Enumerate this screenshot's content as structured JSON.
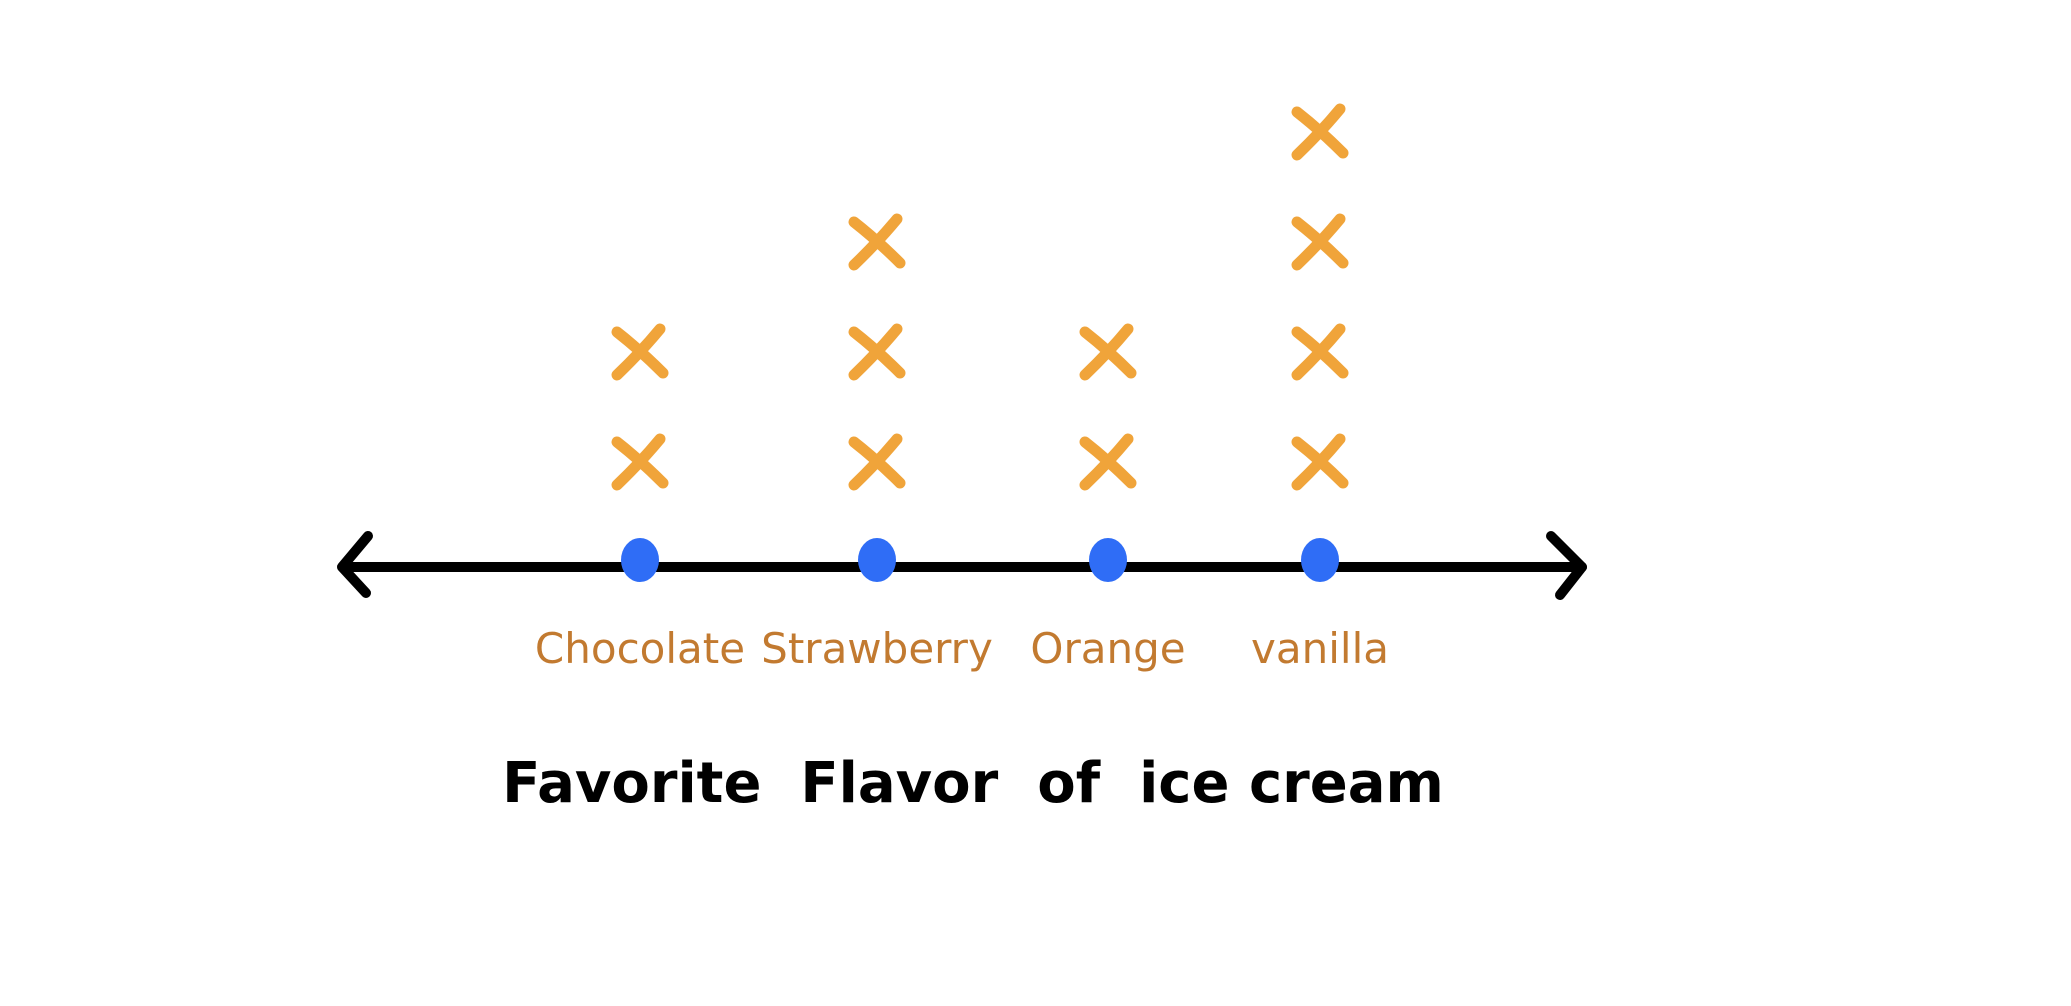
{
  "chart_data": {
    "type": "dot_plot",
    "title": "Favorite  Flavor  of  ice cream",
    "categories": [
      "Chocolate",
      "Strawberry",
      "Orange",
      "vanilla"
    ],
    "values": [
      2,
      3,
      2,
      4
    ],
    "axis_arrows": "both-ends",
    "grid": false,
    "legend": "none",
    "colors": {
      "axis": "#000000",
      "point": "#2f6df6",
      "mark": "#f0a43a",
      "category_label": "#c27a30",
      "title": "#000000"
    },
    "mark_symbol": "x",
    "point_icon": "circle-dot"
  }
}
